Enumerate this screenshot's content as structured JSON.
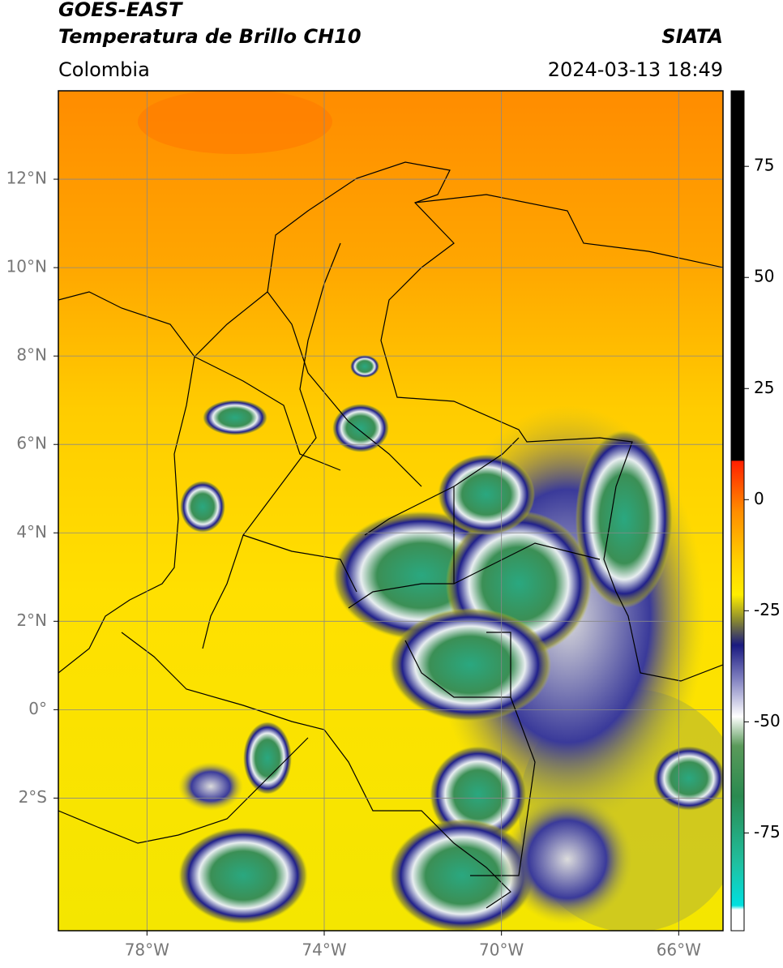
{
  "header": {
    "satellite": "GOES-EAST",
    "product": "Temperatura de Brillo CH10",
    "source": "SIATA",
    "region": "Colombia",
    "datetime": "2024-03-13 18:49"
  },
  "map": {
    "xlim": [
      -80,
      -65
    ],
    "ylim": [
      -5,
      14
    ],
    "xticks": [
      {
        "value": -78,
        "label": "78°W"
      },
      {
        "value": -74,
        "label": "74°W"
      },
      {
        "value": -70,
        "label": "70°W"
      },
      {
        "value": -66,
        "label": "66°W"
      }
    ],
    "yticks": [
      {
        "value": 12,
        "label": "12°N"
      },
      {
        "value": 10,
        "label": "10°N"
      },
      {
        "value": 8,
        "label": "8°N"
      },
      {
        "value": 6,
        "label": "6°N"
      },
      {
        "value": 4,
        "label": "4°N"
      },
      {
        "value": 2,
        "label": "2°N"
      },
      {
        "value": 0,
        "label": "0°"
      },
      {
        "value": -2,
        "label": "2°S"
      }
    ],
    "grid": true
  },
  "colorbar": {
    "clim": [
      -97,
      92
    ],
    "ticks": [
      75,
      50,
      25,
      0,
      -25,
      -50,
      -75
    ]
  }
}
